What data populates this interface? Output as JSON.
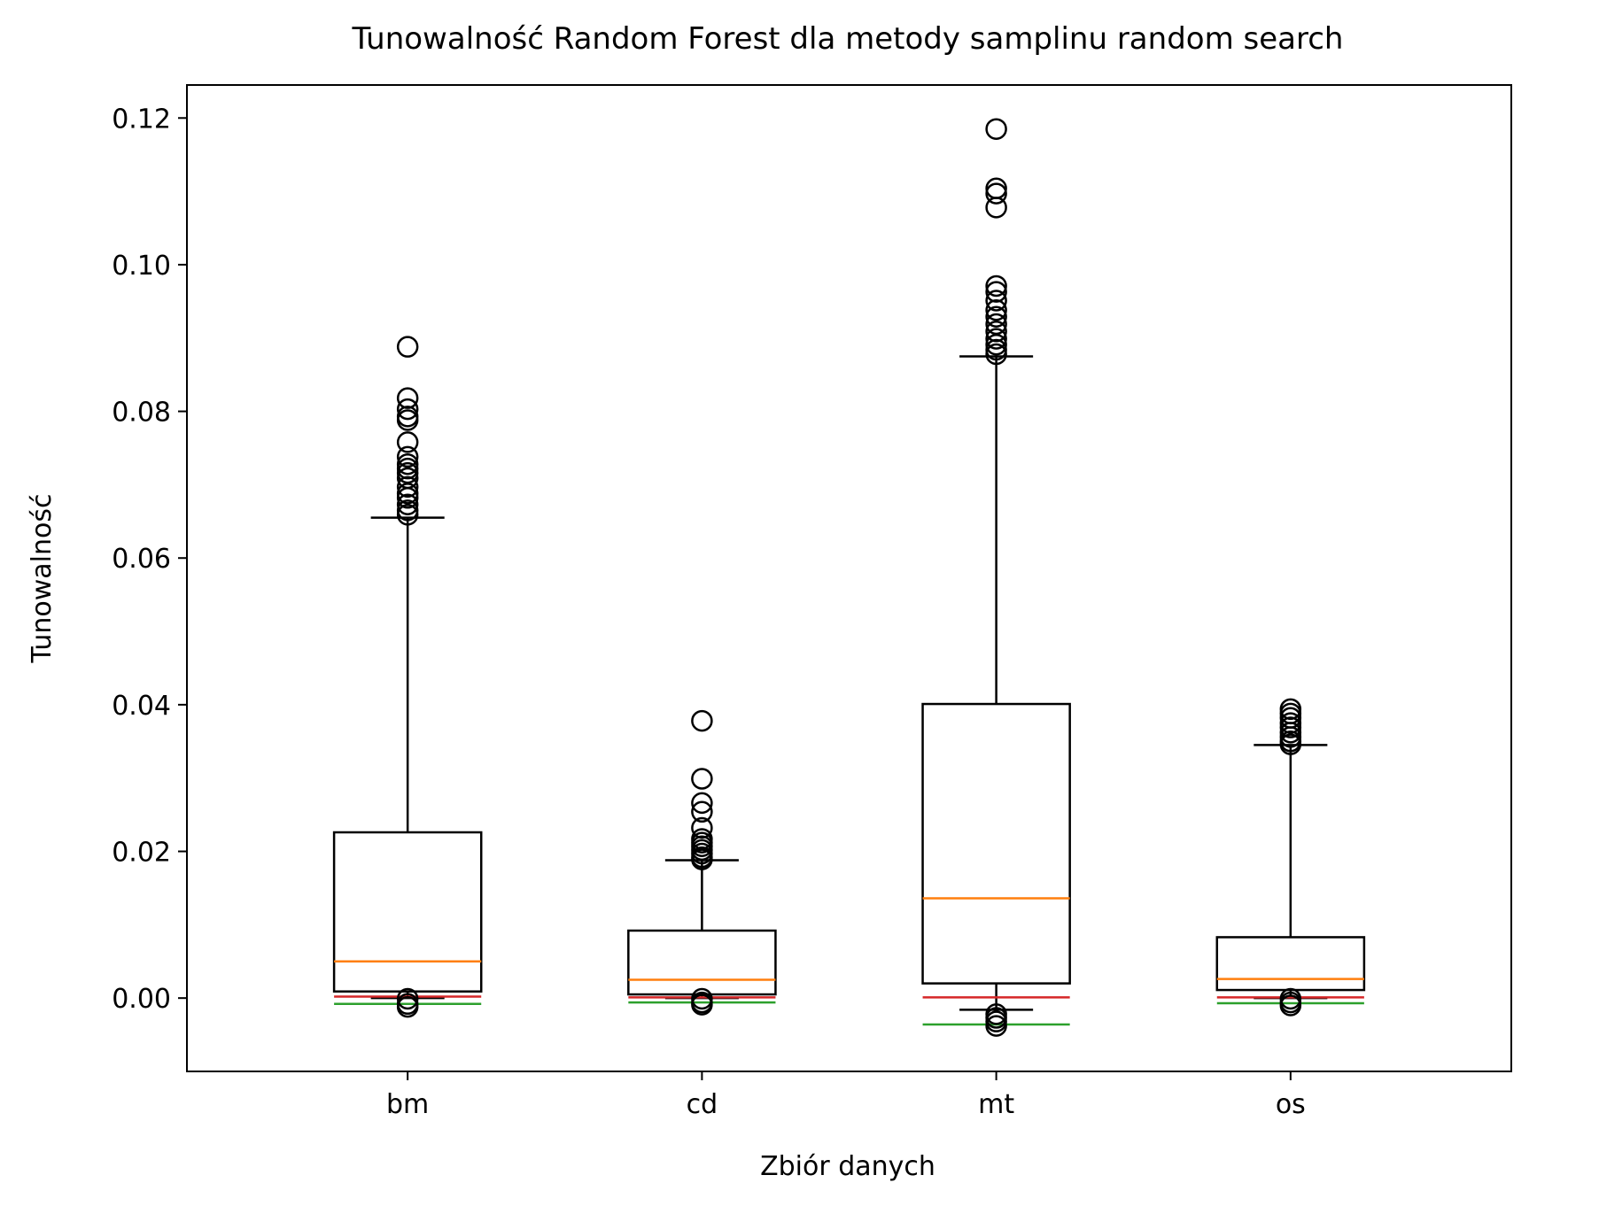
{
  "chart_data": {
    "type": "box",
    "title": "Tunowalność Random Forest dla metody samplinu random search",
    "xlabel": "Zbiór danych",
    "ylabel": "Tunowalność",
    "ylim": [
      -0.01,
      0.1245
    ],
    "yticks": [
      0.0,
      0.02,
      0.04,
      0.06,
      0.08,
      0.1,
      0.12
    ],
    "ytick_labels": [
      "0.00",
      "0.02",
      "0.04",
      "0.06",
      "0.08",
      "0.10",
      "0.12"
    ],
    "categories": [
      "bm",
      "cd",
      "mt",
      "os"
    ],
    "boxes": [
      {
        "category": "bm",
        "whisker_low": 0.0,
        "q1": 0.0009,
        "median": 0.005,
        "q3": 0.0226,
        "whisker_high": 0.0655,
        "red_line": 0.0002,
        "green_line": -0.0008,
        "outliers": [
          0.0888,
          0.0818,
          0.0803,
          0.0793,
          0.0788,
          0.0758,
          0.0738,
          0.0728,
          0.0722,
          0.0716,
          0.0709,
          0.0697,
          0.0688,
          0.0682,
          0.0673,
          0.0665,
          0.0659,
          -0.0001,
          -0.0008,
          -0.0012
        ]
      },
      {
        "category": "cd",
        "whisker_low": 0.0,
        "q1": 0.0005,
        "median": 0.0025,
        "q3": 0.0092,
        "whisker_high": 0.0188,
        "red_line": 0.0001,
        "green_line": -0.0006,
        "outliers": [
          0.0378,
          0.0299,
          0.0266,
          0.0254,
          0.0232,
          0.0217,
          0.0212,
          0.0207,
          0.0202,
          0.0197,
          0.0192,
          0.0189,
          -0.0001,
          -0.0006,
          -0.0009
        ]
      },
      {
        "category": "mt",
        "whisker_low": -0.0016,
        "q1": 0.002,
        "median": 0.0136,
        "q3": 0.0401,
        "whisker_high": 0.0875,
        "red_line": 0.0001,
        "green_line": -0.0036,
        "outliers": [
          0.1185,
          0.1104,
          0.1097,
          0.1078,
          0.0971,
          0.0963,
          0.0951,
          0.0938,
          0.0929,
          0.0919,
          0.0909,
          0.0899,
          0.0891,
          0.0884,
          0.0878,
          -0.0022,
          -0.0027,
          -0.0032,
          -0.0038
        ]
      },
      {
        "category": "os",
        "whisker_low": 0.0,
        "q1": 0.0011,
        "median": 0.0026,
        "q3": 0.0083,
        "whisker_high": 0.0345,
        "red_line": 0.0001,
        "green_line": -0.0007,
        "outliers": [
          0.0394,
          0.0388,
          0.0382,
          0.0375,
          0.0369,
          0.0362,
          0.0356,
          0.035,
          0.0346,
          -0.0001,
          -0.0006,
          -0.001
        ]
      }
    ],
    "colors": {
      "box": "#000000",
      "median": "#ff7f0e",
      "red_line": "#d62728",
      "green_line": "#2ca02c"
    },
    "grid": false
  }
}
